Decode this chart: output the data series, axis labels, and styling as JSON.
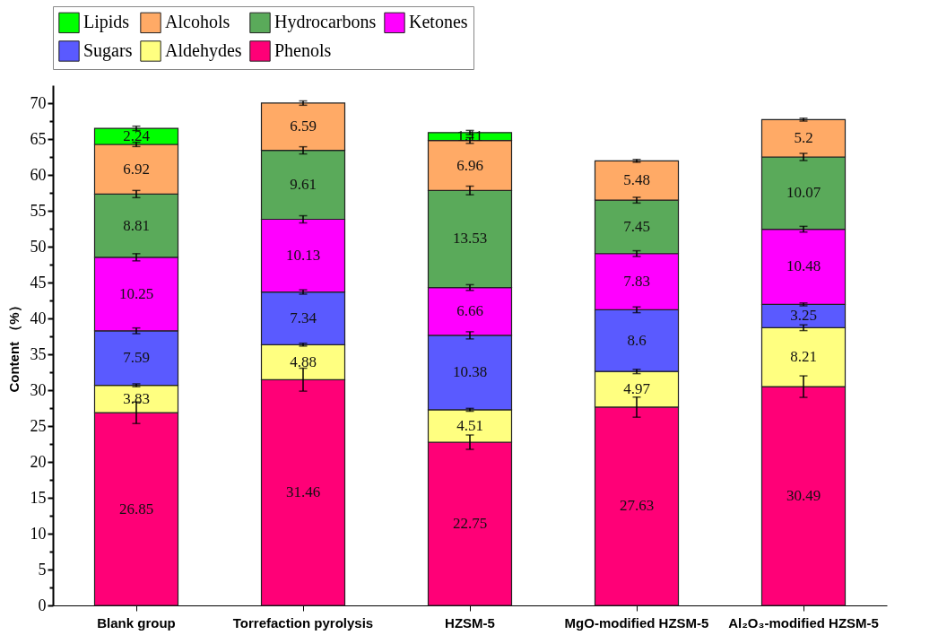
{
  "chart_data": {
    "type": "bar",
    "stacked": true,
    "ylabel": "Content （%）",
    "categories": [
      "Blank group",
      "Torrefaction pyrolysis",
      "HZSM-5",
      "MgO-modified HZSM-5",
      "Al₂O₃-modified HZSM-5"
    ],
    "series": [
      {
        "name": "Phenols",
        "color": "#ff0077",
        "values": [
          26.85,
          31.46,
          22.75,
          27.63,
          30.49
        ],
        "errors": [
          1.5,
          1.6,
          1.0,
          1.4,
          1.5
        ]
      },
      {
        "name": "Aldehydes",
        "color": "#ffff80",
        "values": [
          3.83,
          4.88,
          4.51,
          4.97,
          8.21
        ],
        "errors": [
          0.2,
          0.2,
          0.2,
          0.3,
          0.4
        ]
      },
      {
        "name": "Sugars",
        "color": "#5a5aff",
        "values": [
          7.59,
          7.34,
          10.38,
          8.6,
          3.25
        ],
        "errors": [
          0.4,
          0.3,
          0.5,
          0.4,
          0.2
        ]
      },
      {
        "name": "Ketones",
        "color": "#ff00ff",
        "values": [
          10.25,
          10.13,
          6.66,
          7.83,
          10.48
        ],
        "errors": [
          0.5,
          0.5,
          0.4,
          0.4,
          0.4
        ]
      },
      {
        "name": "Hydrocarbons",
        "color": "#5aaa5a",
        "values": [
          8.81,
          9.61,
          13.53,
          7.45,
          10.07
        ],
        "errors": [
          0.5,
          0.5,
          0.6,
          0.4,
          0.5
        ]
      },
      {
        "name": "Alcohols",
        "color": "#ffaa66",
        "values": [
          6.92,
          6.59,
          6.96,
          5.48,
          5.2
        ],
        "errors": [
          0.3,
          0.3,
          0.4,
          0.2,
          0.2
        ]
      },
      {
        "name": "Lipids",
        "color": "#00ff00",
        "values": [
          2.24,
          null,
          1.11,
          null,
          null
        ],
        "errors": [
          0.3,
          null,
          0.3,
          null,
          null
        ]
      }
    ],
    "ylim": [
      0,
      72.5
    ],
    "yticks": [
      0,
      {
        "value": 2.5,
        "label": null
      },
      5,
      {
        "value": 7.5,
        "label": null
      },
      10,
      {
        "value": 12.5,
        "label": null
      },
      15,
      {
        "value": 17.5,
        "label": null
      },
      20,
      {
        "value": 22.5,
        "label": null
      },
      25,
      {
        "value": 27.5,
        "label": null
      },
      30,
      {
        "value": 32.5,
        "label": null
      },
      35,
      {
        "value": 37.5,
        "label": null
      },
      40,
      {
        "value": 42.5,
        "label": null
      },
      45,
      {
        "value": 47.5,
        "label": null
      },
      50,
      {
        "value": 52.5,
        "label": null
      },
      55,
      {
        "value": 57.5,
        "label": null
      },
      60,
      {
        "value": 62.5,
        "label": null
      },
      65,
      {
        "value": 67.5,
        "label": null
      },
      70
    ],
    "data_labels": true,
    "legend": "top",
    "grid": false
  }
}
